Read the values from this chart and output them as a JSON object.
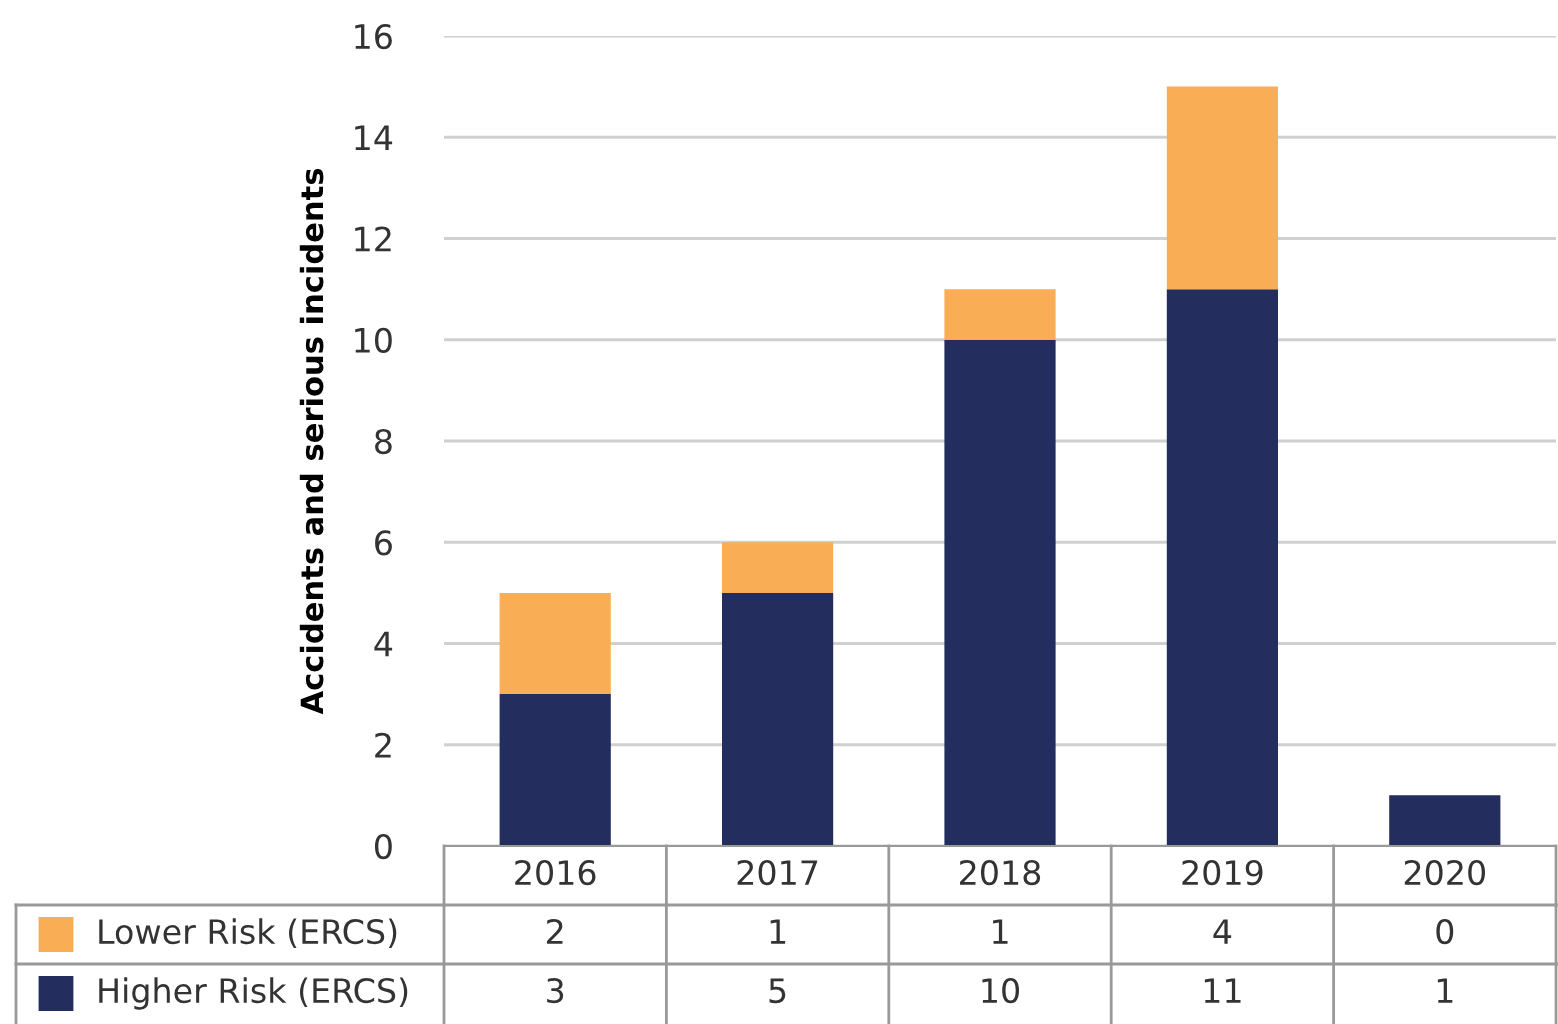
{
  "chart_data": {
    "type": "bar",
    "stacked": true,
    "ylabel": "Accidents and serious incidents",
    "categories": [
      "2016",
      "2017",
      "2018",
      "2019",
      "2020"
    ],
    "series": [
      {
        "name": "Higher Risk (ERCS)",
        "color": "#232d5e",
        "values": [
          3,
          5,
          10,
          11,
          1
        ]
      },
      {
        "name": "Lower Risk (ERCS)",
        "color": "#f9ae55",
        "values": [
          2,
          1,
          1,
          4,
          0
        ]
      }
    ],
    "ylim": [
      0,
      16
    ],
    "yticks": [
      0,
      2,
      4,
      6,
      8,
      10,
      12,
      14,
      16
    ],
    "grid": "y",
    "data_labels": true,
    "legend": "bottom"
  }
}
